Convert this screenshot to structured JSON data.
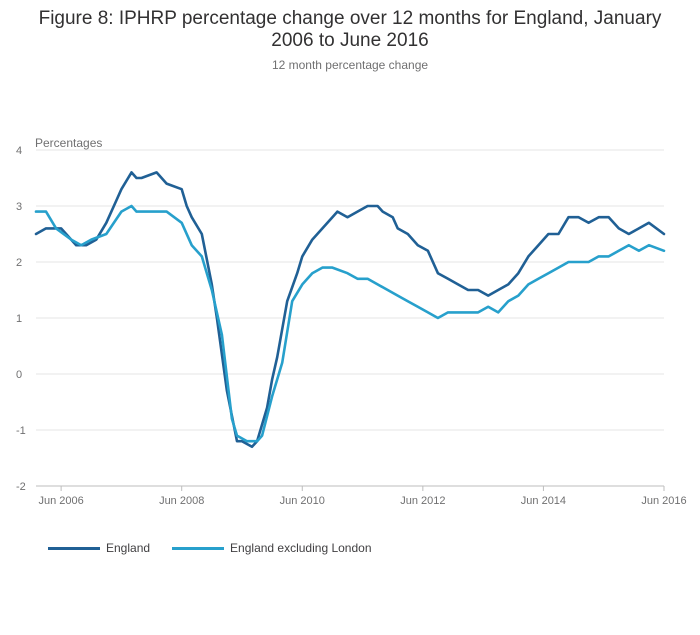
{
  "header": {
    "title": "Figure 8: IPHRP percentage change over 12 months for England, January 2006 to June 2016",
    "subtitle": "12 month percentage change"
  },
  "chart_data": {
    "type": "line",
    "title": "Figure 8: IPHRP percentage change over 12 months for England, January 2006 to June 2016",
    "subtitle": "12 month percentage change",
    "ylabel": "Percentages",
    "xlabel": "",
    "ylim": [
      -2,
      4
    ],
    "yticks": [
      -2,
      -1,
      0,
      1,
      2,
      3,
      4
    ],
    "xlim": [
      "2006-01",
      "2016-06"
    ],
    "xticks": [
      "Jun 2006",
      "Jun 2008",
      "Jun 2010",
      "Jun 2012",
      "Jun 2014",
      "Jun 2016"
    ],
    "grid": true,
    "legend_position": "bottom-left",
    "series": [
      {
        "name": "England",
        "color": "#206095",
        "x": [
          "2006-01",
          "2006-03",
          "2006-06",
          "2006-09",
          "2006-11",
          "2007-01",
          "2007-03",
          "2007-05",
          "2007-06",
          "2007-08",
          "2007-09",
          "2007-10",
          "2008-01",
          "2008-03",
          "2008-06",
          "2008-07",
          "2008-08",
          "2008-10",
          "2008-12",
          "2009-01",
          "2009-03",
          "2009-05",
          "2009-06",
          "2009-08",
          "2009-09",
          "2009-11",
          "2009-12",
          "2010-01",
          "2010-03",
          "2010-05",
          "2010-06",
          "2010-08",
          "2010-10",
          "2010-12",
          "2011-01",
          "2011-03",
          "2011-05",
          "2011-07",
          "2011-09",
          "2011-10",
          "2011-12",
          "2012-01",
          "2012-03",
          "2012-05",
          "2012-07",
          "2012-09",
          "2012-11",
          "2013-01",
          "2013-03",
          "2013-05",
          "2013-07",
          "2013-09",
          "2013-11",
          "2014-01",
          "2014-03",
          "2014-05",
          "2014-07",
          "2014-09",
          "2014-11",
          "2015-01",
          "2015-03",
          "2015-05",
          "2015-07",
          "2015-09",
          "2015-11",
          "2016-01",
          "2016-03",
          "2016-06"
        ],
        "values": [
          2.5,
          2.6,
          2.6,
          2.3,
          2.3,
          2.4,
          2.7,
          3.1,
          3.3,
          3.6,
          3.5,
          3.5,
          3.6,
          3.4,
          3.3,
          3.0,
          2.8,
          2.5,
          1.6,
          1.0,
          -0.3,
          -1.2,
          -1.2,
          -1.3,
          -1.2,
          -0.6,
          -0.1,
          0.3,
          1.3,
          1.8,
          2.1,
          2.4,
          2.6,
          2.8,
          2.9,
          2.8,
          2.9,
          3.0,
          3.0,
          2.9,
          2.8,
          2.6,
          2.5,
          2.3,
          2.2,
          1.8,
          1.7,
          1.6,
          1.5,
          1.5,
          1.4,
          1.5,
          1.6,
          1.8,
          2.1,
          2.3,
          2.5,
          2.5,
          2.8,
          2.8,
          2.7,
          2.8,
          2.8,
          2.6,
          2.5,
          2.6,
          2.7,
          2.5
        ]
      },
      {
        "name": "England excluding London",
        "color": "#27a0cc",
        "x": [
          "2006-01",
          "2006-03",
          "2006-05",
          "2006-08",
          "2006-10",
          "2006-12",
          "2007-03",
          "2007-06",
          "2007-08",
          "2007-09",
          "2007-10",
          "2007-12",
          "2008-03",
          "2008-06",
          "2008-08",
          "2008-10",
          "2008-12",
          "2009-02",
          "2009-04",
          "2009-05",
          "2009-07",
          "2009-09",
          "2009-10",
          "2009-12",
          "2010-02",
          "2010-04",
          "2010-06",
          "2010-08",
          "2010-10",
          "2010-12",
          "2011-03",
          "2011-05",
          "2011-07",
          "2011-09",
          "2011-11",
          "2012-01",
          "2012-03",
          "2012-05",
          "2012-07",
          "2012-09",
          "2012-11",
          "2013-01",
          "2013-03",
          "2013-05",
          "2013-07",
          "2013-09",
          "2013-11",
          "2014-01",
          "2014-03",
          "2014-05",
          "2014-07",
          "2014-09",
          "2014-11",
          "2015-01",
          "2015-03",
          "2015-05",
          "2015-07",
          "2015-09",
          "2015-11",
          "2016-01",
          "2016-03",
          "2016-06"
        ],
        "values": [
          2.9,
          2.9,
          2.6,
          2.4,
          2.3,
          2.4,
          2.5,
          2.9,
          3.0,
          2.9,
          2.9,
          2.9,
          2.9,
          2.7,
          2.3,
          2.1,
          1.5,
          0.7,
          -0.8,
          -1.1,
          -1.2,
          -1.2,
          -1.1,
          -0.4,
          0.2,
          1.3,
          1.6,
          1.8,
          1.9,
          1.9,
          1.8,
          1.7,
          1.7,
          1.6,
          1.5,
          1.4,
          1.3,
          1.2,
          1.1,
          1.0,
          1.1,
          1.1,
          1.1,
          1.1,
          1.2,
          1.1,
          1.3,
          1.4,
          1.6,
          1.7,
          1.8,
          1.9,
          2.0,
          2.0,
          2.0,
          2.1,
          2.1,
          2.2,
          2.3,
          2.2,
          2.3,
          2.2
        ]
      }
    ]
  }
}
